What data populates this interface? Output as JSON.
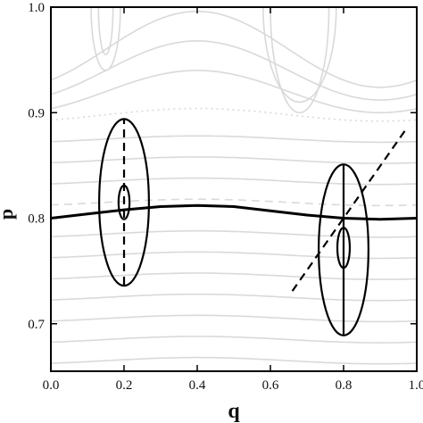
{
  "chart_data": {
    "type": "line",
    "title": "",
    "xlabel": "q",
    "ylabel": "p",
    "xlim": [
      0.0,
      1.0
    ],
    "ylim": [
      0.655,
      1.0
    ],
    "xticks": [
      {
        "value": 0.0,
        "label": "0.0"
      },
      {
        "value": 0.2,
        "label": "0.2"
      },
      {
        "value": 0.4,
        "label": "0.4"
      },
      {
        "value": 0.6,
        "label": "0.6"
      },
      {
        "value": 0.8,
        "label": "0.8"
      },
      {
        "value": 1.0,
        "label": "1.0"
      }
    ],
    "yticks": [
      {
        "value": 0.7,
        "label": "0.7"
      },
      {
        "value": 0.8,
        "label": "0.8"
      },
      {
        "value": 0.9,
        "label": "0.9"
      },
      {
        "value": 1.0,
        "label": "1.0"
      }
    ],
    "colors": {
      "main": "#000000",
      "background_contours": "#d9d9d9",
      "frame": "#000000"
    },
    "background_contours": {
      "style": "light gray level curves",
      "base_levels": [
        0.665,
        0.685,
        0.705,
        0.725,
        0.745,
        0.765,
        0.785,
        0.835,
        0.855,
        0.875
      ],
      "dashed_levels": [
        0.815
      ],
      "dotted_levels": [
        0.898
      ],
      "upper_wavy_levels": [
        0.92,
        0.94,
        0.96
      ]
    },
    "main_curve": {
      "style": "solid thick",
      "x": [
        0.0,
        0.1,
        0.2,
        0.3,
        0.4,
        0.5,
        0.6,
        0.7,
        0.8,
        0.9,
        1.0
      ],
      "y": [
        0.8,
        0.804,
        0.808,
        0.811,
        0.812,
        0.811,
        0.807,
        0.803,
        0.8,
        0.799,
        0.8
      ]
    },
    "ellipses": [
      {
        "center": [
          0.2,
          0.815
        ],
        "half_width": 0.068,
        "half_height": 0.079,
        "style": "solid"
      },
      {
        "center": [
          0.2,
          0.815
        ],
        "half_width": 0.015,
        "half_height": 0.016,
        "style": "solid"
      },
      {
        "center": [
          0.8,
          0.77
        ],
        "half_width": 0.068,
        "half_height": 0.081,
        "style": "solid"
      },
      {
        "center": [
          0.8,
          0.772
        ],
        "half_width": 0.017,
        "half_height": 0.019,
        "style": "solid"
      }
    ],
    "segments": [
      {
        "from": [
          0.2,
          0.737
        ],
        "to": [
          0.2,
          0.893
        ],
        "style": "dashed"
      },
      {
        "from": [
          0.8,
          0.689
        ],
        "to": [
          0.8,
          0.851
        ],
        "style": "solid"
      },
      {
        "from": [
          0.66,
          0.731
        ],
        "to": [
          0.97,
          0.884
        ],
        "style": "dashed"
      }
    ]
  }
}
